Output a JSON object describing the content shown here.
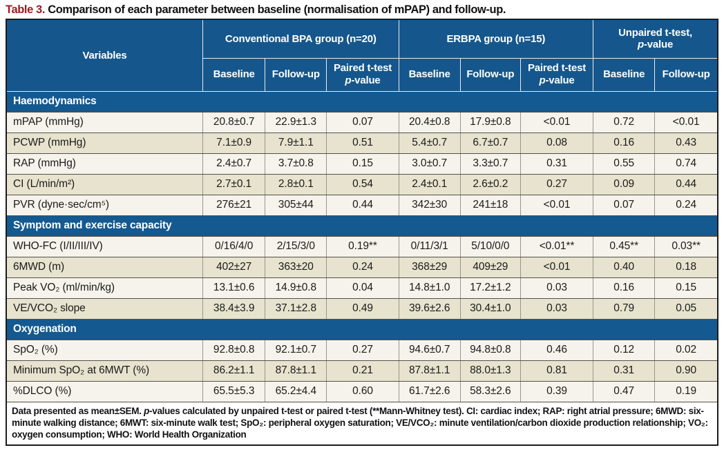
{
  "title": {
    "prefix": "Table 3.",
    "rest": " Comparison of each parameter between baseline (normalisation of mPAP) and follow-up."
  },
  "colors": {
    "header_blue": "#15578C",
    "section_blue": "#14598F",
    "row_light": "#F5F3EB",
    "row_beige": "#E7E3CE",
    "title_red": "#9E1B1F"
  },
  "header": {
    "variables": "Variables",
    "groups": [
      {
        "label": "Conventional BPA group (n=20)"
      },
      {
        "label": "ERBPA group (n=15)"
      },
      {
        "line1": "Unpaired t-test,",
        "italic": "p",
        "rest": "-value"
      }
    ],
    "subcols": [
      {
        "text": "Baseline"
      },
      {
        "text": "Follow-up"
      },
      {
        "line1": "Paired t-test",
        "italic": "p",
        "rest": "-value"
      },
      {
        "text": "Baseline"
      },
      {
        "text": "Follow-up"
      },
      {
        "line1": "Paired t-test",
        "italic": "p",
        "rest": "-value"
      },
      {
        "text": "Baseline"
      },
      {
        "text": "Follow-up"
      }
    ]
  },
  "sections": [
    {
      "label": "Haemodynamics",
      "rows": [
        {
          "variable": "mPAP (mmHg)",
          "cells": [
            "20.8±0.7",
            "22.9±1.3",
            "0.07",
            "20.4±0.8",
            "17.9±0.8",
            "<0.01",
            "0.72",
            "<0.01"
          ]
        },
        {
          "variable": "PCWP (mmHg)",
          "cells": [
            "7.1±0.9",
            "7.9±1.1",
            "0.51",
            "5.4±0.7",
            "6.7±0.7",
            "0.08",
            "0.16",
            "0.43"
          ]
        },
        {
          "variable": "RAP (mmHg)",
          "cells": [
            "2.4±0.7",
            "3.7±0.8",
            "0.15",
            "3.0±0.7",
            "3.3±0.7",
            "0.31",
            "0.55",
            "0.74"
          ]
        },
        {
          "variable": "CI (L/min/m²)",
          "cells": [
            "2.7±0.1",
            "2.8±0.1",
            "0.54",
            "2.4±0.1",
            "2.6±0.2",
            "0.27",
            "0.09",
            "0.44"
          ]
        },
        {
          "variable": "PVR (dyne·sec/cm⁵)",
          "cells": [
            "276±21",
            "305±44",
            "0.44",
            "342±30",
            "241±18",
            "<0.01",
            "0.07",
            "0.24"
          ]
        }
      ]
    },
    {
      "label": "Symptom and exercise capacity",
      "rows": [
        {
          "variable": "WHO-FC (I/II/III/IV)",
          "cells": [
            "0/16/4/0",
            "2/15/3/0",
            "0.19**",
            "0/11/3/1",
            "5/10/0/0",
            "<0.01**",
            "0.45**",
            "0.03**"
          ]
        },
        {
          "variable": "6MWD (m)",
          "cells": [
            "402±27",
            "363±20",
            "0.24",
            "368±29",
            "409±29",
            "<0.01",
            "0.40",
            "0.18"
          ]
        },
        {
          "variable": "Peak VO₂ (ml/min/kg)",
          "cells": [
            "13.1±0.6",
            "14.9±0.8",
            "0.04",
            "14.8±1.0",
            "17.2±1.2",
            "0.03",
            "0.16",
            "0.15"
          ]
        },
        {
          "variable": "VE/VCO₂ slope",
          "cells": [
            "38.4±3.9",
            "37.1±2.8",
            "0.49",
            "39.6±2.6",
            "30.4±1.0",
            "0.03",
            "0.79",
            "0.05"
          ]
        }
      ]
    },
    {
      "label": "Oxygenation",
      "rows": [
        {
          "variable": "SpO₂ (%)",
          "cells": [
            "92.8±0.8",
            "92.1±0.7",
            "0.27",
            "94.6±0.7",
            "94.8±0.8",
            "0.46",
            "0.12",
            "0.02"
          ]
        },
        {
          "variable": "Minimum SpO₂ at 6MWT (%)",
          "cells": [
            "86.2±1.1",
            "87.8±1.1",
            "0.21",
            "87.8±1.1",
            "88.0±1.3",
            "0.81",
            "0.31",
            "0.90"
          ]
        },
        {
          "variable": "%DLCO (%)",
          "cells": [
            "65.5±5.3",
            "65.2±4.4",
            "0.60",
            "61.7±2.6",
            "58.3±2.6",
            "0.39",
            "0.47",
            "0.19"
          ]
        }
      ]
    }
  ],
  "footer": {
    "part1": "Data presented as mean±SEM. ",
    "italic1": "p",
    "part2": "-values calculated by unpaired t-test or paired t-test (**Mann-Whitney test). CI: cardiac index; RAP: right atrial pressure; 6MWD: six-minute walking distance; 6MWT: six-minute walk test; SpO₂: peripheral oxygen saturation; VE/VCO₂: minute ventilation/carbon dioxide production relationship; VO₂: oxygen consumption; WHO: World Health Organization"
  }
}
